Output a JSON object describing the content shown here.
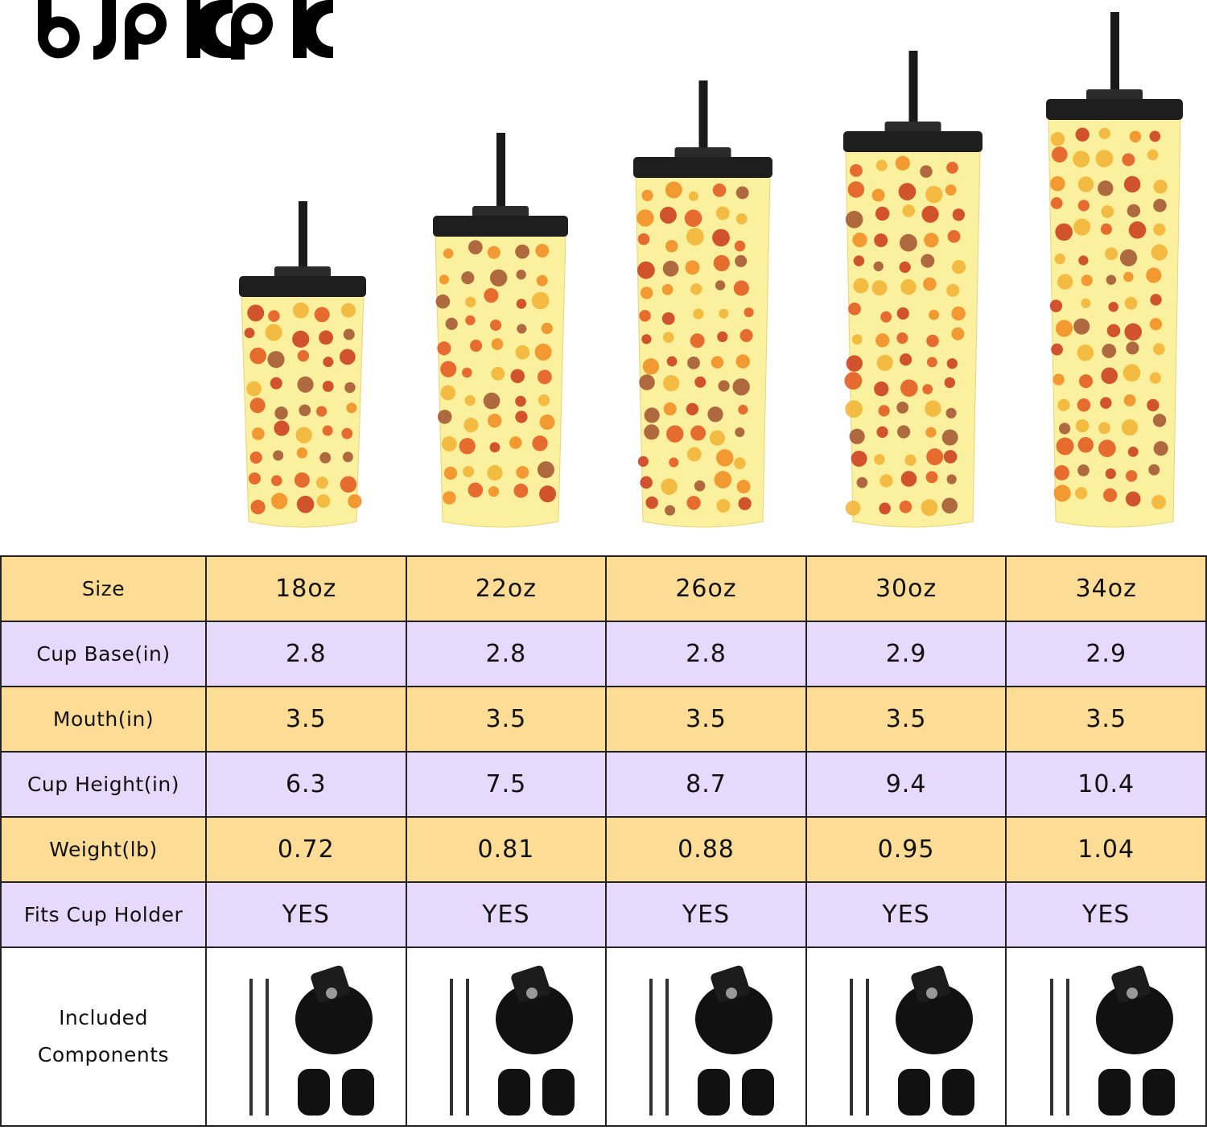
{
  "brand": {
    "logo_text": "BJPKPK"
  },
  "product_images": [
    {
      "size": "18oz"
    },
    {
      "size": "22oz"
    },
    {
      "size": "26oz"
    },
    {
      "size": "30oz"
    },
    {
      "size": "34oz"
    }
  ],
  "table": {
    "rows": [
      {
        "label": "Size",
        "values": [
          "18oz",
          "22oz",
          "26oz",
          "30oz",
          "34oz"
        ]
      },
      {
        "label": "Cup Base(in)",
        "values": [
          "2.8",
          "2.8",
          "2.8",
          "2.9",
          "2.9"
        ]
      },
      {
        "label": "Mouth(in)",
        "values": [
          "3.5",
          "3.5",
          "3.5",
          "3.5",
          "3.5"
        ]
      },
      {
        "label": "Cup Height(in)",
        "values": [
          "6.3",
          "7.5",
          "8.7",
          "9.4",
          "10.4"
        ]
      },
      {
        "label": "Weight(lb)",
        "values": [
          "0.72",
          "0.81",
          "0.88",
          "0.95",
          "1.04"
        ]
      },
      {
        "label": "Fits Cup Holder",
        "values": [
          "YES",
          "YES",
          "YES",
          "YES",
          "YES"
        ]
      }
    ],
    "components": {
      "label_line1": "Included",
      "label_line2": "Components",
      "items": [
        "straws",
        "lid",
        "straw-stoppers"
      ]
    }
  },
  "colors": {
    "row_orange": "#FDDC96",
    "row_purple": "#E7D9FB",
    "cup_body": "#FBF09E",
    "lid": "#1e1e1e"
  }
}
